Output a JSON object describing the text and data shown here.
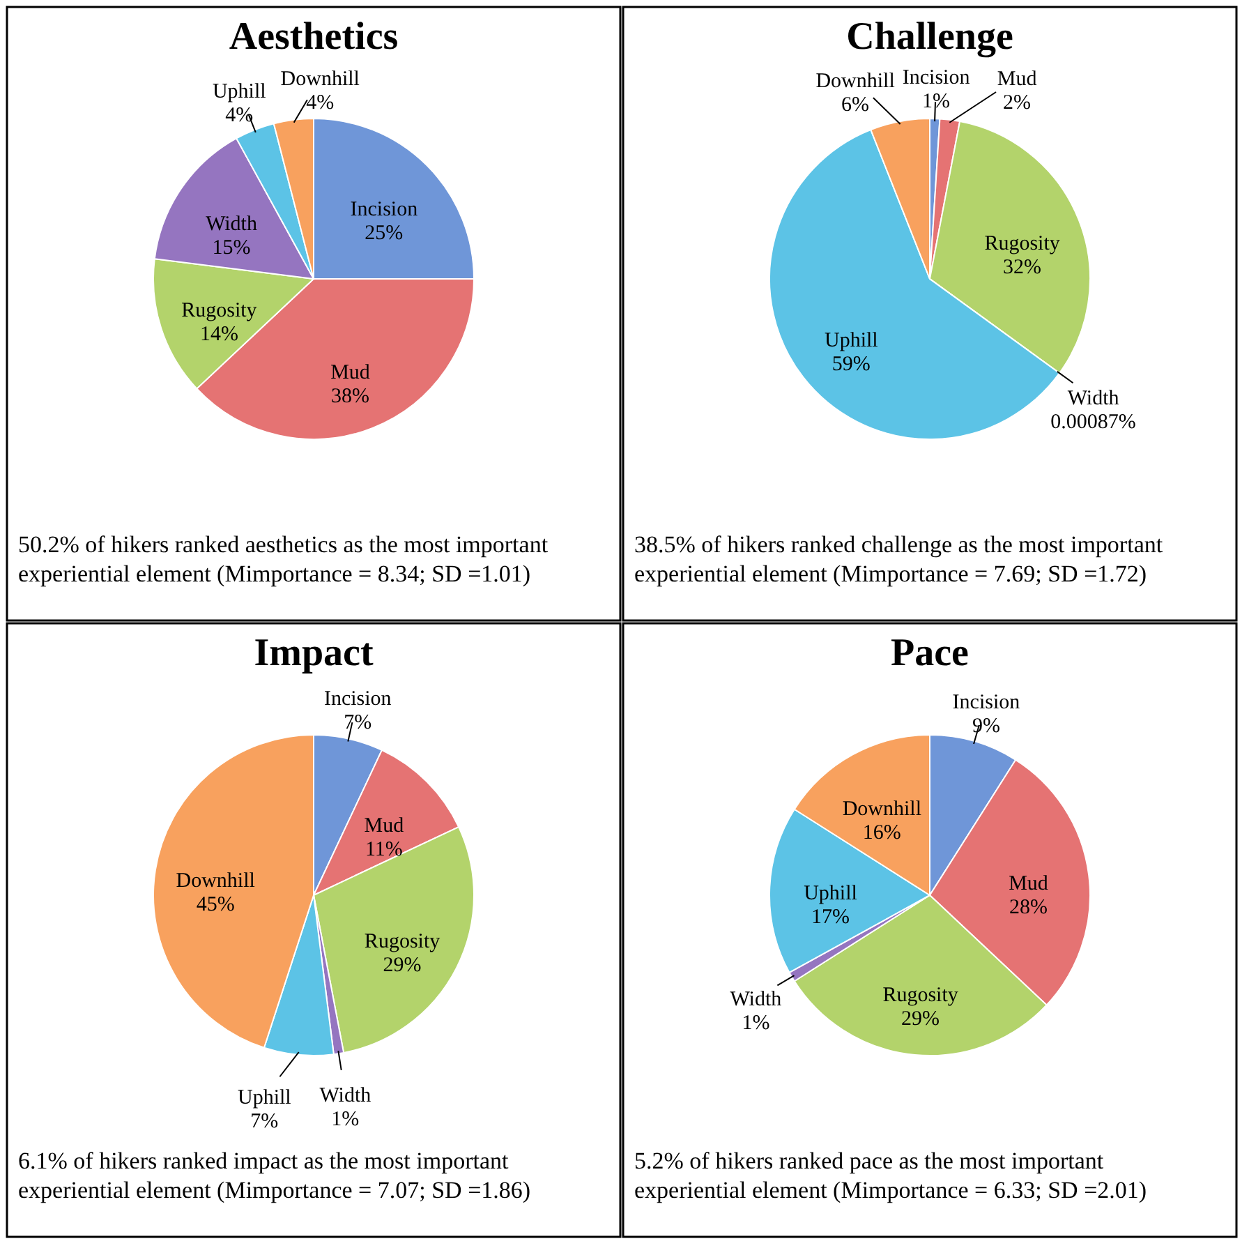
{
  "chart_data": [
    {
      "type": "pie",
      "title": "Aesthetics",
      "categories": [
        "Incision",
        "Mud",
        "Rugosity",
        "Width",
        "Uphill",
        "Downhill"
      ],
      "values": [
        25,
        38,
        14,
        15,
        4,
        4
      ],
      "value_labels": [
        "25%",
        "38%",
        "14%",
        "15%",
        "4%",
        "4%"
      ],
      "colors": [
        "#6f96d8",
        "#e57373",
        "#b3d36b",
        "#9575c0",
        "#5cc3e6",
        "#f8a15e"
      ],
      "annotations": [
        "50.2% of hikers ranked aesthetics as the most important experiential element (Mimportance = 8.34; SD =1.01)"
      ]
    },
    {
      "type": "pie",
      "title": "Challenge",
      "categories": [
        "Incision",
        "Mud",
        "Rugosity",
        "Width",
        "Uphill",
        "Downhill"
      ],
      "values": [
        1,
        2,
        32,
        0.00087,
        59,
        6
      ],
      "value_labels": [
        "1%",
        "2%",
        "32%",
        "0.00087%",
        "59%",
        "6%"
      ],
      "colors": [
        "#6f96d8",
        "#e57373",
        "#b3d36b",
        "#9575c0",
        "#5cc3e6",
        "#f8a15e"
      ],
      "annotations": [
        "38.5% of hikers ranked challenge as the most important experiential element (Mimportance = 7.69; SD =1.72)"
      ]
    },
    {
      "type": "pie",
      "title": "Impact",
      "categories": [
        "Incision",
        "Mud",
        "Rugosity",
        "Width",
        "Uphill",
        "Downhill"
      ],
      "values": [
        7,
        11,
        29,
        1,
        7,
        45
      ],
      "value_labels": [
        "7%",
        "11%",
        "29%",
        "1%",
        "7%",
        "45%"
      ],
      "colors": [
        "#6f96d8",
        "#e57373",
        "#b3d36b",
        "#9575c0",
        "#5cc3e6",
        "#f8a15e"
      ],
      "annotations": [
        "6.1% of hikers ranked impact as the most important experiential element (Mimportance = 7.07; SD =1.86)"
      ]
    },
    {
      "type": "pie",
      "title": "Pace",
      "categories": [
        "Incision",
        "Mud",
        "Rugosity",
        "Width",
        "Uphill",
        "Downhill"
      ],
      "values": [
        9,
        28,
        29,
        1,
        17,
        16
      ],
      "value_labels": [
        "9%",
        "28%",
        "29%",
        "1%",
        "17%",
        "16%"
      ],
      "colors": [
        "#6f96d8",
        "#e57373",
        "#b3d36b",
        "#9575c0",
        "#5cc3e6",
        "#f8a15e"
      ],
      "annotations": [
        "5.2% of hikers ranked pace as the most important experiential element (Mimportance = 6.33; SD =2.01)"
      ]
    }
  ]
}
